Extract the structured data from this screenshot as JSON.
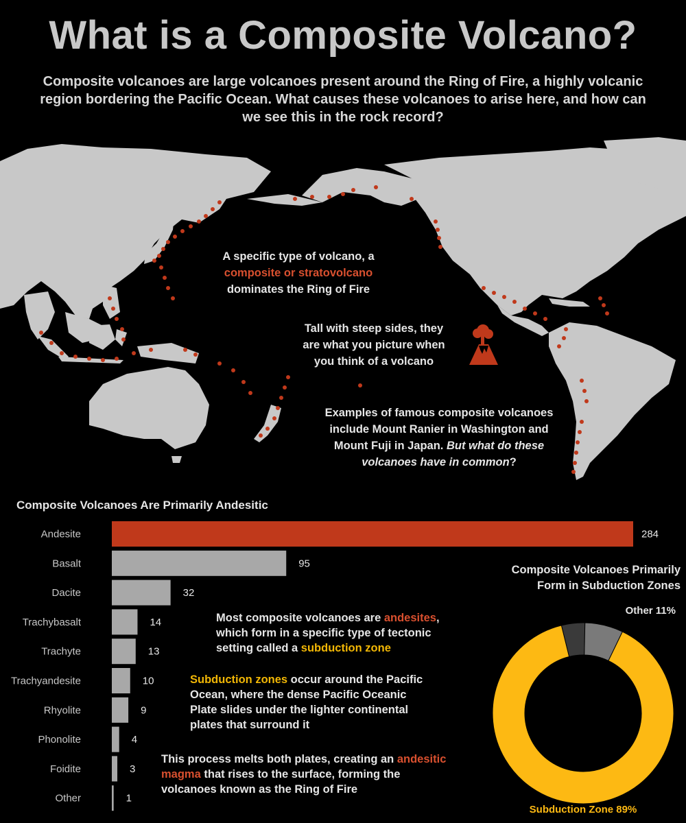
{
  "header": {
    "title": "What is a Composite Volcano?",
    "intro": "Composite volcanoes are large volcanoes present around the Ring of Fire,  a highly volcanic region bordering the Pacific Ocean. What causes these volcanoes to arise here, and how can we see this in the rock record?"
  },
  "map": {
    "callout_1": {
      "line1": "A specific type of volcano, a",
      "highlight": "composite or stratovolcano",
      "line3": "dominates the Ring of Fire"
    },
    "callout_2": {
      "line1": "Tall with steep sides, they",
      "line2": "are what you picture when",
      "line3": "you think of a volcano"
    },
    "callout_3": {
      "line1": "Examples of famous composite volcanoes",
      "line2": "include Mount Ranier in Washington and",
      "line3a": "Mount Fuji in Japan. ",
      "line3b": "But what do these",
      "line4a": "volcanoes have in common",
      "line4b": "?"
    },
    "icon": "volcano-icon",
    "colors": {
      "land": "#c8c8c8",
      "volcano": "#c0391b",
      "ocean": "#000000"
    }
  },
  "explain": {
    "p1": {
      "a": "Most composite volcanoes are ",
      "b": "andesites",
      "c": ",",
      "d": "which form in a specific type of tectonic",
      "e": "setting called a ",
      "f": "subduction zone"
    },
    "p2": {
      "a": "Subduction zones",
      "b": " occur around the Pacific",
      "c": "Ocean, where the dense Pacific Oceanic",
      "d": "Plate slides under the lighter continental",
      "e": "plates that surround it"
    },
    "p3": {
      "a": "This process melts both plates, creating an ",
      "b": "andesitic",
      "c": "magma",
      "d": " that rises to the surface, forming the",
      "e": "volcanoes known as the Ring of Fire"
    }
  },
  "chart_data": [
    {
      "type": "bar",
      "orientation": "horizontal",
      "title": "Composite Volcanoes Are Primarily Andesitic",
      "categories": [
        "Andesite",
        "Basalt",
        "Dacite",
        "Trachybasalt",
        "Trachyte",
        "Trachyandesite",
        "Rhyolite",
        "Phonolite",
        "Foidite",
        "Other"
      ],
      "values": [
        284,
        95,
        32,
        14,
        13,
        10,
        9,
        4,
        3,
        1
      ],
      "colors": [
        "#c0391b",
        "#a8a8a8",
        "#a8a8a8",
        "#a8a8a8",
        "#a8a8a8",
        "#a8a8a8",
        "#a8a8a8",
        "#a8a8a8",
        "#a8a8a8",
        "#a8a8a8"
      ],
      "data_labels": true,
      "grid": false
    },
    {
      "type": "pie",
      "variant": "donut",
      "title": "Composite Volcanoes Primarily Form in Subduction Zones",
      "slices": [
        {
          "label": "Subduction Zone",
          "value": 89,
          "color": "#fdb913",
          "display": "Subduction Zone 89%"
        },
        {
          "label": "Other",
          "value": 11,
          "color": "#7a7a7a",
          "display": "Other 11%"
        }
      ],
      "extra_colors": {
        "other_dark": "#3a3a3a"
      },
      "legend": "none"
    }
  ]
}
